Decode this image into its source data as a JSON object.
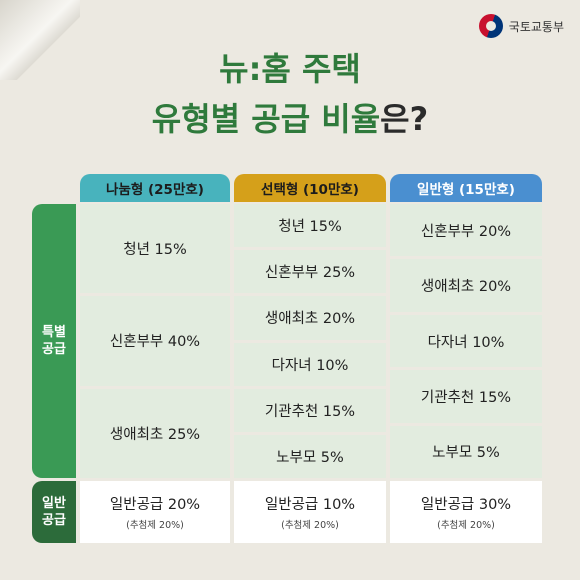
{
  "header": {
    "ministry_name": "국토교통부",
    "emblem_icon": "taegeuk-emblem-icon"
  },
  "title": {
    "line1": "뉴:홈 주택",
    "line2_main": "유형별 공급 비율",
    "line2_tail": "은?"
  },
  "columns": [
    {
      "label": "나눔형 (25만호)",
      "color": "#48b3bd"
    },
    {
      "label": "선택형 (10만호)",
      "color": "#d5a01a"
    },
    {
      "label": "일반형 (15만호)",
      "color": "#4a8fd0"
    }
  ],
  "row_labels": {
    "special": "특별\n공급",
    "general": "일반\n공급"
  },
  "special_supply": {
    "nanum": [
      "청년 15%",
      "신혼부부 40%",
      "생애최초 25%"
    ],
    "seontaek": [
      "청년 15%",
      "신혼부부 25%",
      "생애최초 20%",
      "다자녀 10%",
      "기관추천 15%",
      "노부모 5%"
    ],
    "ilban": [
      "신혼부부 20%",
      "생애최초 20%",
      "다자녀 10%",
      "기관추천 15%",
      "노부모 5%"
    ]
  },
  "general_supply": [
    {
      "main": "일반공급 20%",
      "note": "(추첨제 20%)"
    },
    {
      "main": "일반공급 10%",
      "note": "(추첨제 20%)"
    },
    {
      "main": "일반공급 30%",
      "note": "(추첨제 20%)"
    }
  ]
}
